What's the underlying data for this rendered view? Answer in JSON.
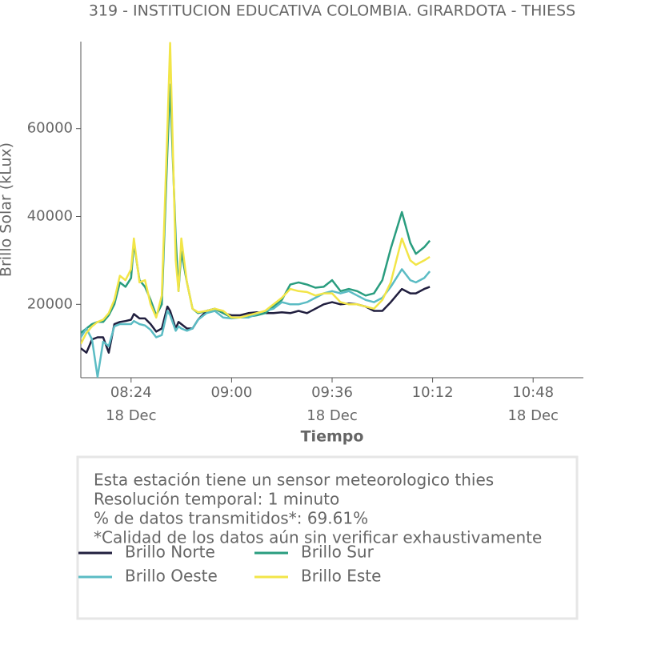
{
  "chart_data": {
    "type": "line",
    "title": "319 - INSTITUCION EDUCATIVA COLOMBIA. GIRARDOTA - THIESS",
    "xlabel": "Tiempo",
    "ylabel": "Brillo Solar (kLux)",
    "x": [
      "08:06",
      "08:08",
      "08:10",
      "08:12",
      "08:14",
      "08:16",
      "08:18",
      "08:20",
      "08:22",
      "08:24",
      "08:25",
      "08:27",
      "08:29",
      "08:31",
      "08:33",
      "08:35",
      "08:37",
      "08:38",
      "08:40",
      "08:41",
      "08:42",
      "08:44",
      "08:46",
      "08:48",
      "08:51",
      "08:54",
      "08:57",
      "09:00",
      "09:03",
      "09:06",
      "09:09",
      "09:12",
      "09:15",
      "09:18",
      "09:21",
      "09:24",
      "09:27",
      "09:30",
      "09:33",
      "09:36",
      "09:39",
      "09:42",
      "09:45",
      "09:48",
      "09:51",
      "09:54",
      "09:57",
      "10:01",
      "10:04",
      "10:06",
      "10:09",
      "10:11"
    ],
    "xlim": [
      "08:06",
      "11:06"
    ],
    "xticks": [
      "08:24",
      "09:00",
      "09:36",
      "10:12",
      "10:48"
    ],
    "xtick_dates": [
      "18 Dec",
      null,
      "18 Dec",
      null,
      "18 Dec"
    ],
    "ylim": [
      3300,
      79800
    ],
    "yticks": [
      20000,
      40000,
      60000
    ],
    "grid": false,
    "series": [
      {
        "name": "Brillo Norte",
        "color": "#211f3f",
        "values": [
          10000,
          9000,
          12000,
          12500,
          12500,
          9000,
          15500,
          16000,
          16200,
          16500,
          17800,
          16800,
          16800,
          15500,
          13800,
          14500,
          19500,
          18500,
          14500,
          16000,
          15500,
          14500,
          14500,
          16500,
          18500,
          19000,
          18000,
          17500,
          17500,
          18000,
          18200,
          18000,
          18000,
          18200,
          18000,
          18500,
          18000,
          19000,
          20000,
          20500,
          20000,
          20200,
          20000,
          19500,
          18500,
          18500,
          20500,
          23500,
          22500,
          22500,
          23500,
          24000
        ]
      },
      {
        "name": "Brillo Sur",
        "color": "#2a9d7f",
        "values": [
          13500,
          14500,
          15500,
          16000,
          16000,
          17500,
          20000,
          25000,
          24000,
          26000,
          34000,
          25500,
          24000,
          21000,
          17500,
          20000,
          55000,
          70000,
          35000,
          23000,
          32000,
          25000,
          19000,
          18000,
          18500,
          19000,
          18000,
          17000,
          17000,
          17200,
          17500,
          18000,
          19500,
          21000,
          24500,
          25000,
          24500,
          23800,
          24000,
          25500,
          23000,
          23500,
          23000,
          22000,
          22500,
          25500,
          32700,
          41000,
          34000,
          31500,
          33000,
          34500
        ]
      },
      {
        "name": "Brillo Oeste",
        "color": "#5bbcc4",
        "values": [
          12500,
          14500,
          12000,
          3500,
          11500,
          10500,
          15000,
          15500,
          15500,
          15500,
          16200,
          15500,
          15200,
          14200,
          12500,
          13000,
          18500,
          17500,
          14000,
          15000,
          14500,
          14000,
          14500,
          16500,
          18000,
          18500,
          17000,
          16800,
          17000,
          17000,
          17800,
          18500,
          19000,
          20500,
          20000,
          20000,
          20500,
          21500,
          22500,
          23000,
          22500,
          23000,
          22000,
          21000,
          20500,
          21500,
          24000,
          28000,
          25500,
          25000,
          26000,
          27500
        ]
      },
      {
        "name": "Brillo Este",
        "color": "#f2e548",
        "values": [
          11000,
          13500,
          15000,
          16000,
          16500,
          18000,
          21000,
          26500,
          25500,
          28000,
          35000,
          25000,
          25500,
          20000,
          17000,
          22000,
          60000,
          79500,
          30000,
          23000,
          35000,
          25000,
          19000,
          18200,
          18500,
          19000,
          18500,
          17000,
          17000,
          17500,
          18000,
          18500,
          20000,
          21500,
          23500,
          23000,
          22800,
          22000,
          22500,
          22500,
          20500,
          20000,
          20000,
          19500,
          19000,
          21000,
          25000,
          35000,
          30000,
          29000,
          30000,
          30800
        ]
      }
    ],
    "annotation": [
      "Esta estación tiene un sensor meteorologico thies",
      "Resolución temporal: 1 minuto",
      "% de datos transmitidos*: 69.61%",
      "*Calidad de los datos aún sin verificar exhaustivamente"
    ]
  }
}
